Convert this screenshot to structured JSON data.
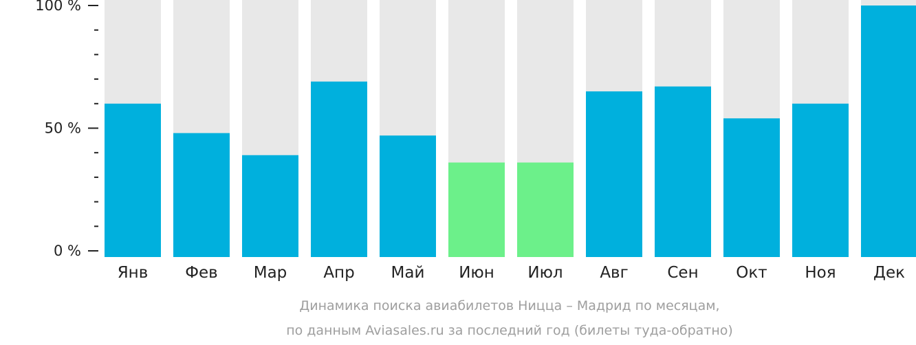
{
  "chart_data": {
    "type": "bar",
    "categories": [
      "Янв",
      "Фев",
      "Мар",
      "Апр",
      "Май",
      "Июн",
      "Июл",
      "Авг",
      "Сен",
      "Окт",
      "Ноя",
      "Дек"
    ],
    "values": [
      60,
      48,
      39,
      69,
      47,
      36,
      36,
      65,
      67,
      54,
      60,
      100
    ],
    "highlighted": [
      false,
      false,
      false,
      false,
      false,
      true,
      true,
      false,
      false,
      false,
      false,
      false
    ],
    "ylim": [
      0,
      100
    ],
    "yticks": [
      {
        "value": 100,
        "label": "100 %"
      },
      {
        "value": 50,
        "label": "50 %"
      },
      {
        "value": 0,
        "label": "0 %"
      }
    ],
    "minor_tick_step": 10,
    "caption": [
      "Динамика поиска авиабилетов Ницца – Мадрид по месяцам,",
      "по данным Aviasales.ru за последний год (билеты туда-обратно)"
    ],
    "colors": {
      "bar": "#00b0dd",
      "highlight": "#6cf08a",
      "background_bar": "#e8e8e8",
      "axis": "#222222",
      "caption": "#9e9e9e"
    }
  }
}
